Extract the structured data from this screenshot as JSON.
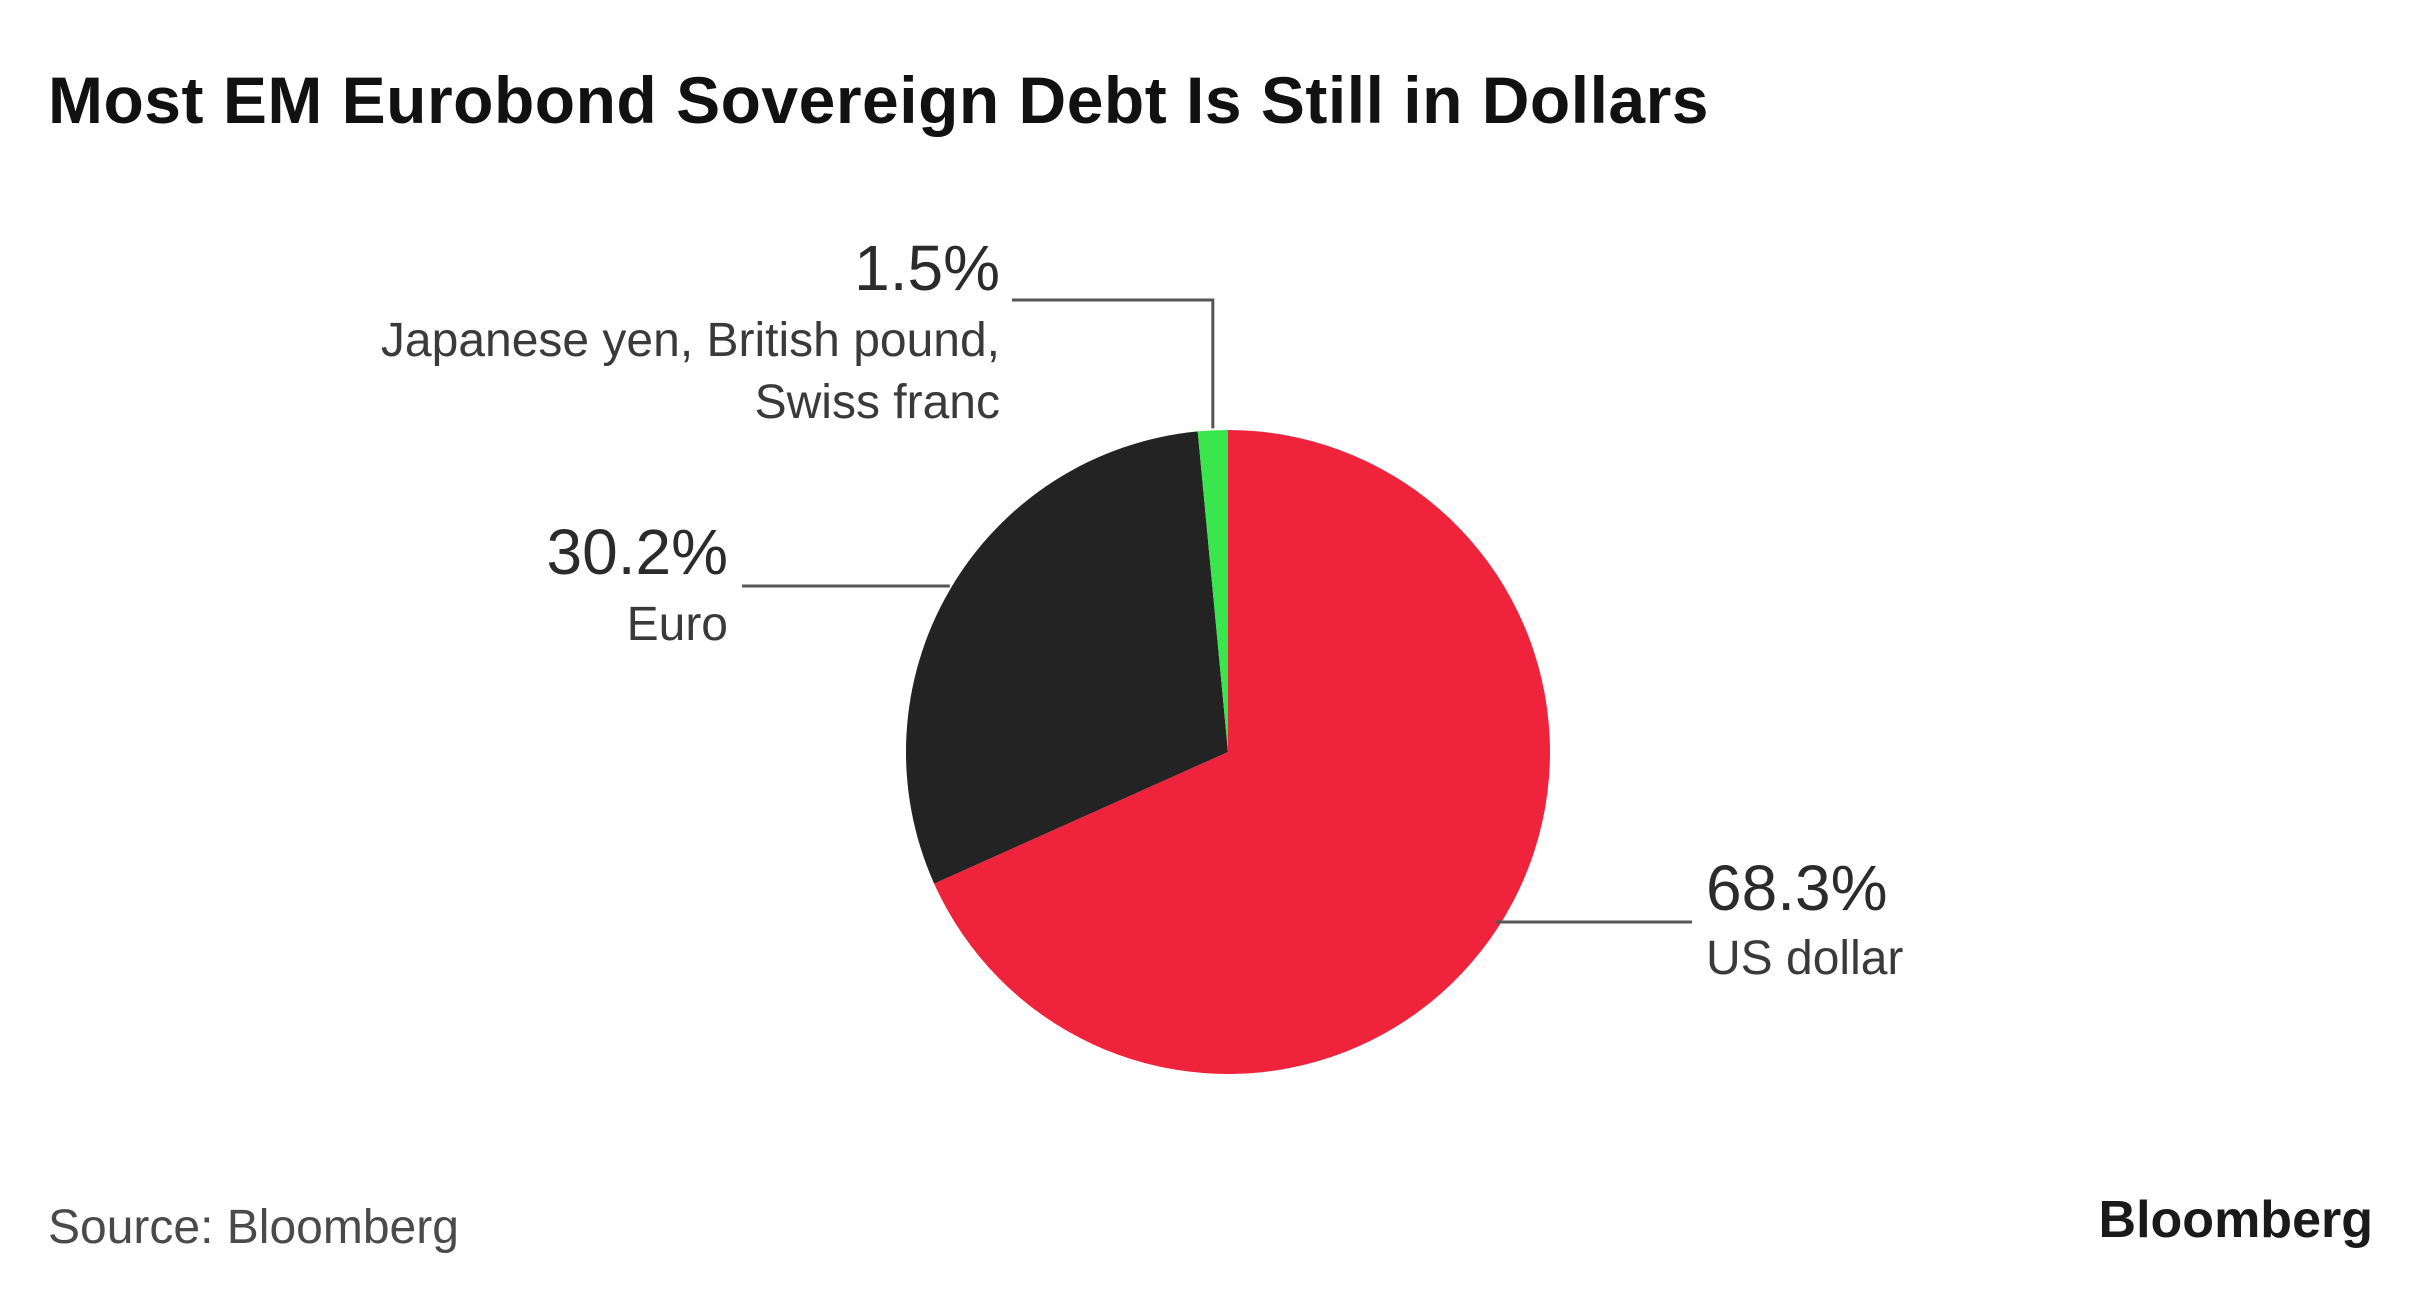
{
  "chart_data": {
    "type": "pie",
    "title": "Most EM Eurobond Sovereign Debt Is Still in Dollars",
    "unit": "%",
    "slices": [
      {
        "label_lines": [
          "US dollar"
        ],
        "value": 68.3,
        "value_label": "68.3%",
        "color": "#f0233d"
      },
      {
        "label_lines": [
          "Euro"
        ],
        "value": 30.2,
        "value_label": "30.2%",
        "color": "#232323"
      },
      {
        "label_lines": [
          "Japanese yen, British pound,",
          "Swiss franc"
        ],
        "value": 1.5,
        "value_label": "1.5%",
        "color": "#39e64b"
      }
    ],
    "legend": "none",
    "source": "Source: Bloomberg",
    "brand": "Bloomberg"
  }
}
